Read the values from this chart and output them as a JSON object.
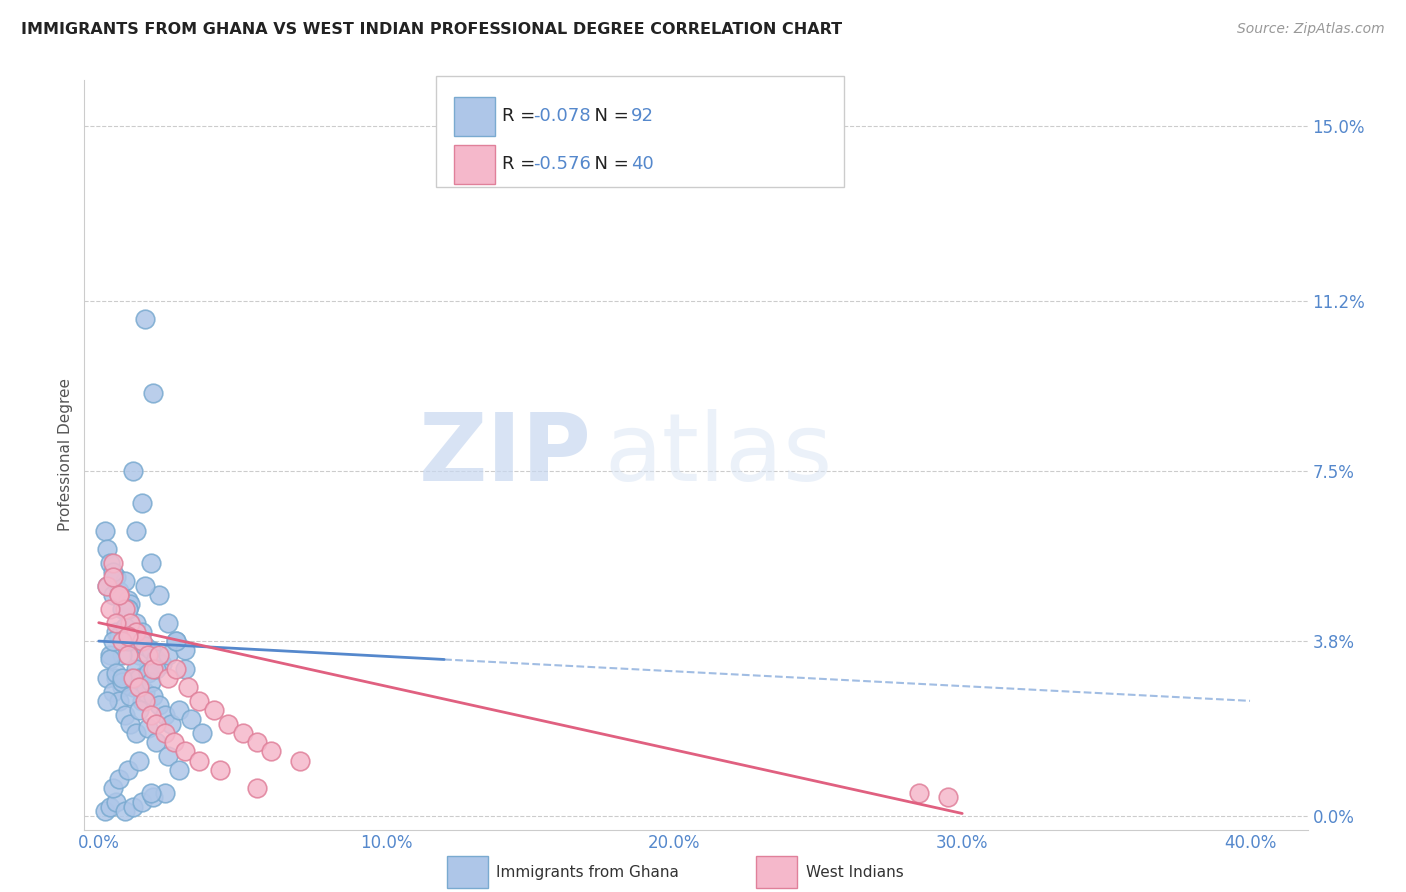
{
  "title": "IMMIGRANTS FROM GHANA VS WEST INDIAN PROFESSIONAL DEGREE CORRELATION CHART",
  "source": "Source: ZipAtlas.com",
  "ylabel": "Professional Degree",
  "xlabel_ticks": [
    "0.0%",
    "10.0%",
    "20.0%",
    "30.0%",
    "40.0%"
  ],
  "xlabel_vals": [
    0.0,
    10.0,
    20.0,
    30.0,
    40.0
  ],
  "ytick_labels": [
    "0.0%",
    "3.8%",
    "7.5%",
    "11.2%",
    "15.0%"
  ],
  "ytick_vals": [
    0.0,
    3.8,
    7.5,
    11.2,
    15.0
  ],
  "xlim": [
    -0.5,
    42.0
  ],
  "ylim": [
    -0.3,
    16.0
  ],
  "ghana_color": "#aec6e8",
  "ghana_edge_color": "#7aaad0",
  "west_indian_color": "#f5b8cb",
  "west_indian_edge_color": "#e0809a",
  "ghana_trend_color": "#5588cc",
  "west_indian_trend_color": "#e06080",
  "R_ghana": -0.078,
  "N_ghana": 92,
  "R_west": -0.576,
  "N_west": 40,
  "legend_label_1": "Immigrants from Ghana",
  "legend_label_2": "West Indians",
  "watermark_zip": "ZIP",
  "watermark_atlas": "atlas",
  "background_color": "#ffffff",
  "grid_color": "#cccccc",
  "ghana_x": [
    0.3,
    0.5,
    0.6,
    0.7,
    0.8,
    0.9,
    1.0,
    1.1,
    1.2,
    1.3,
    1.4,
    1.5,
    1.6,
    1.7,
    1.8,
    2.0,
    2.2,
    2.4,
    2.7,
    3.0,
    0.2,
    0.3,
    0.4,
    0.5,
    0.6,
    0.7,
    0.8,
    0.9,
    1.0,
    1.1,
    1.2,
    1.3,
    1.4,
    1.5,
    1.6,
    1.7,
    1.8,
    1.9,
    2.0,
    2.1,
    2.3,
    2.5,
    2.8,
    3.2,
    3.6,
    0.4,
    0.6,
    0.8,
    1.0,
    1.2,
    1.5,
    1.8,
    2.1,
    2.4,
    2.7,
    3.0,
    0.3,
    0.5,
    0.7,
    0.9,
    1.1,
    1.3,
    1.6,
    1.9,
    0.4,
    0.6,
    0.8,
    1.0,
    1.3,
    1.6,
    0.2,
    0.4,
    0.6,
    0.9,
    1.2,
    1.5,
    1.9,
    2.3,
    0.5,
    0.7,
    1.0,
    1.4,
    1.8,
    0.3,
    0.5,
    0.8,
    1.1,
    1.4,
    1.7,
    2.0,
    2.4,
    2.8
  ],
  "ghana_y": [
    5.0,
    4.8,
    5.2,
    4.9,
    4.5,
    5.1,
    4.7,
    4.6,
    3.8,
    4.2,
    3.5,
    4.0,
    3.7,
    3.2,
    3.6,
    3.4,
    3.3,
    3.5,
    3.8,
    3.6,
    6.2,
    5.8,
    5.5,
    5.3,
    4.0,
    3.9,
    3.5,
    4.1,
    3.8,
    3.0,
    2.8,
    3.2,
    3.0,
    2.5,
    2.7,
    3.1,
    2.9,
    2.6,
    3.2,
    2.4,
    2.2,
    2.0,
    2.3,
    2.1,
    1.8,
    3.5,
    3.0,
    2.8,
    4.5,
    7.5,
    6.8,
    5.5,
    4.8,
    4.2,
    3.8,
    3.2,
    3.0,
    2.7,
    2.5,
    2.2,
    2.0,
    1.8,
    10.8,
    9.2,
    3.4,
    3.1,
    2.9,
    4.5,
    6.2,
    5.0,
    0.1,
    0.2,
    0.3,
    0.1,
    0.2,
    0.3,
    0.4,
    0.5,
    0.6,
    0.8,
    1.0,
    1.2,
    0.5,
    2.5,
    3.8,
    3.0,
    2.6,
    2.3,
    1.9,
    1.6,
    1.3,
    1.0
  ],
  "west_x": [
    0.3,
    0.5,
    0.7,
    0.9,
    1.1,
    1.3,
    1.5,
    1.7,
    1.9,
    2.1,
    2.4,
    2.7,
    3.1,
    3.5,
    4.0,
    4.5,
    5.0,
    5.5,
    6.0,
    7.0,
    0.4,
    0.6,
    0.8,
    1.0,
    1.2,
    1.4,
    1.6,
    1.8,
    2.0,
    2.3,
    2.6,
    3.0,
    3.5,
    4.2,
    5.5,
    0.5,
    0.7,
    1.0,
    28.5,
    29.5
  ],
  "west_y": [
    5.0,
    5.5,
    4.8,
    4.5,
    4.2,
    4.0,
    3.8,
    3.5,
    3.2,
    3.5,
    3.0,
    3.2,
    2.8,
    2.5,
    2.3,
    2.0,
    1.8,
    1.6,
    1.4,
    1.2,
    4.5,
    4.2,
    3.8,
    3.5,
    3.0,
    2.8,
    2.5,
    2.2,
    2.0,
    1.8,
    1.6,
    1.4,
    1.2,
    1.0,
    0.6,
    5.2,
    4.8,
    3.9,
    0.5,
    0.4
  ]
}
